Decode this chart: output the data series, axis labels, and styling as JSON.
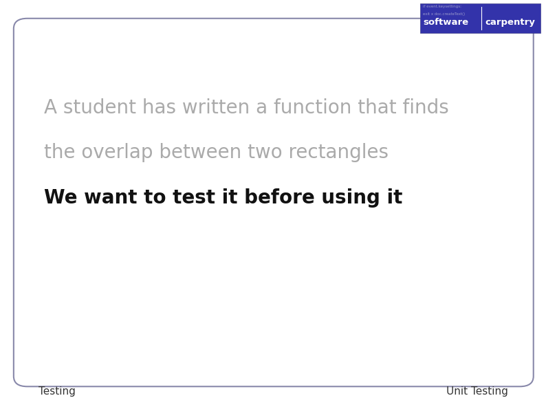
{
  "background_color": "#ffffff",
  "border_color": "#8888aa",
  "line1_text": "A student has written a function that finds",
  "line1_color": "#aaaaaa",
  "line1_fontsize": 20,
  "line2_text": "the overlap between two rectangles",
  "line2_color": "#aaaaaa",
  "line2_fontsize": 20,
  "line3_text": "We want to test it before using it",
  "line3_color": "#111111",
  "line3_fontsize": 20,
  "footer_left": "Testing",
  "footer_right": "Unit Testing",
  "footer_color": "#333333",
  "footer_fontsize": 11,
  "logo_bg_color": "#3333aa",
  "logo_text1": "software",
  "logo_text2": "carpentry",
  "logo_fontsize": 9.5
}
